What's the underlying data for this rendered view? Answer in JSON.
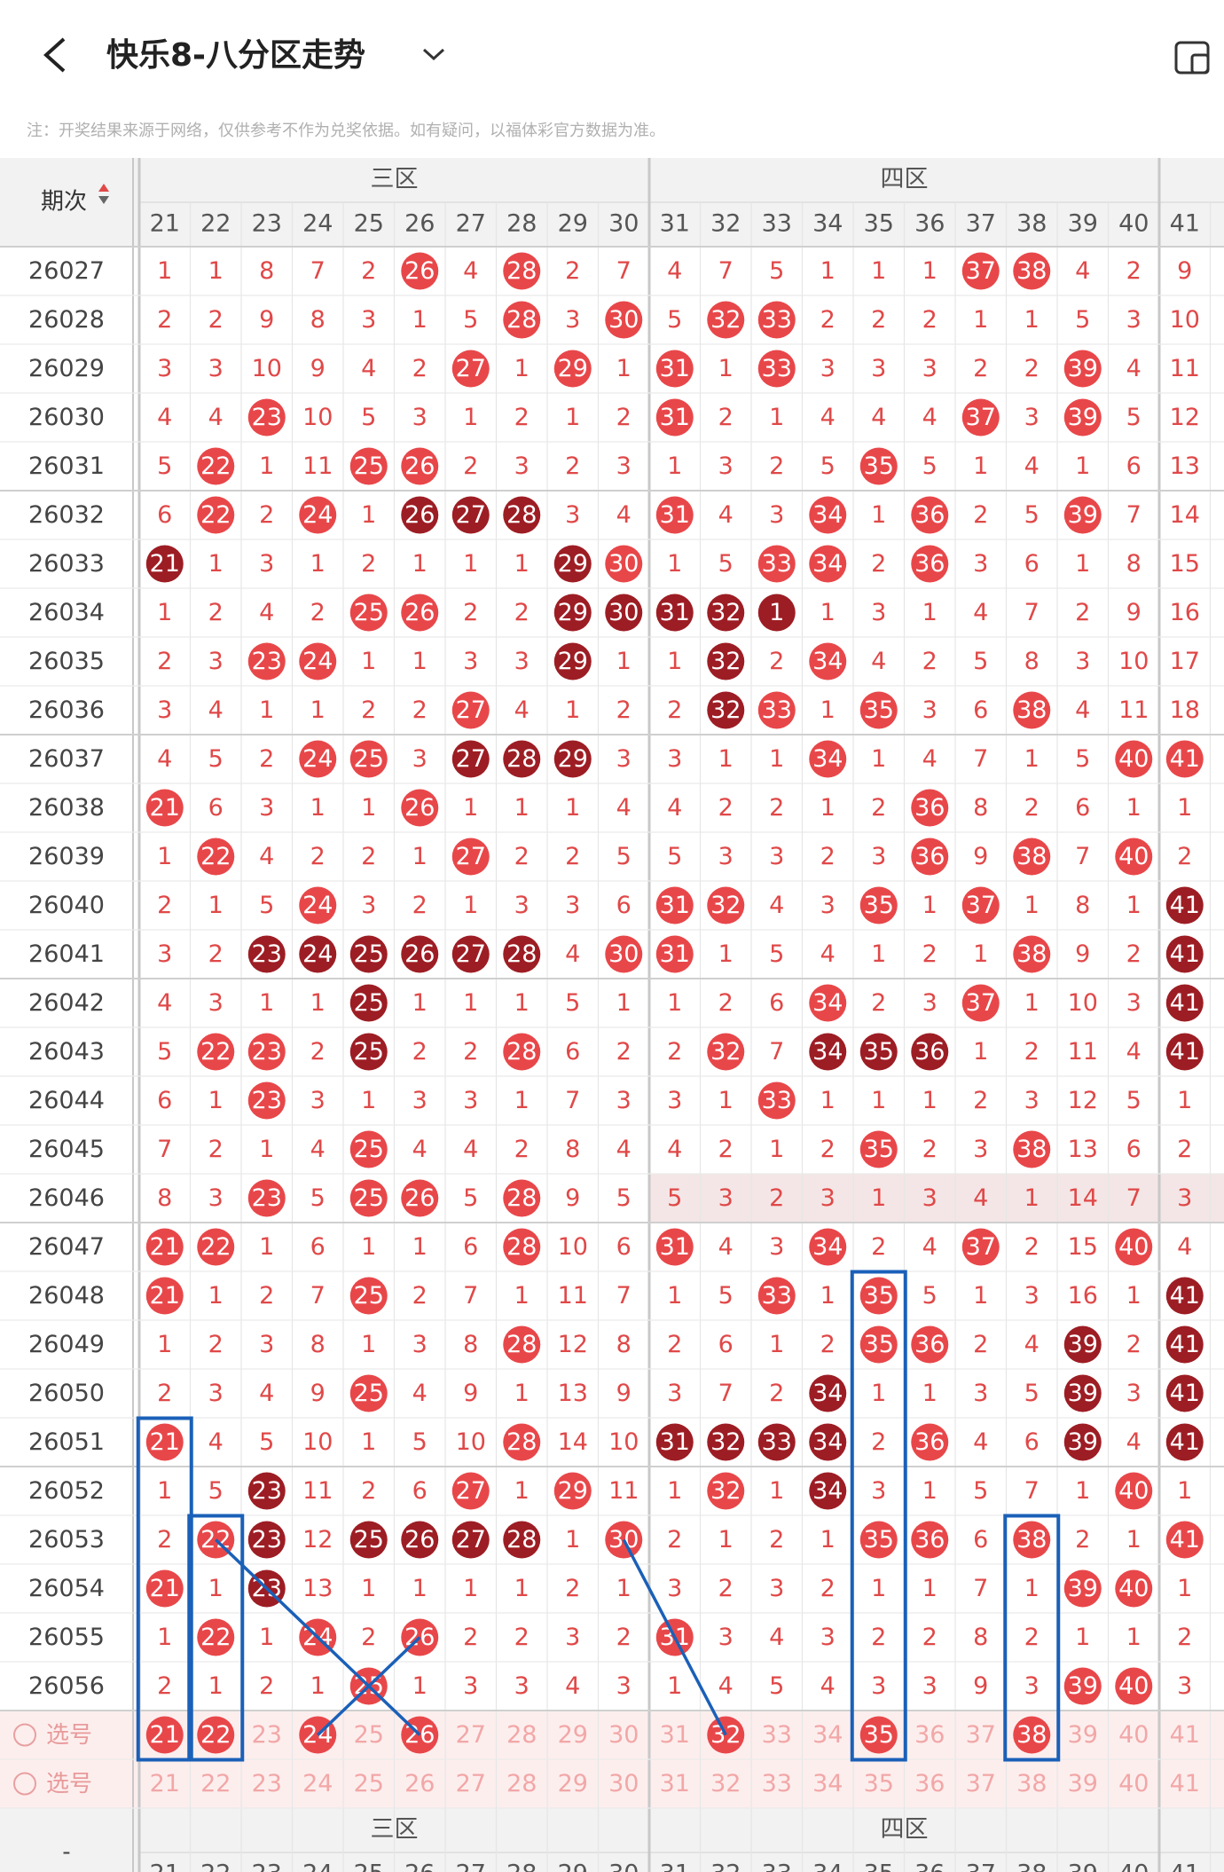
{
  "header": {
    "title": "快乐8-八分区走势",
    "notice": "注：开奖结果来源于网络，仅供参考不作为兑奖依据。如有疑问，以福体彩官方数据为准。"
  },
  "table": {
    "issue_label": "期次",
    "sections": [
      "三区",
      "四区"
    ],
    "columns": [
      "21",
      "22",
      "23",
      "24",
      "25",
      "26",
      "27",
      "28",
      "29",
      "30",
      "31",
      "32",
      "33",
      "34",
      "35",
      "36",
      "37",
      "38",
      "39",
      "40",
      "41"
    ],
    "rows": [
      {
        "issue": "26027",
        "cells": [
          1,
          1,
          8,
          7,
          2,
          26,
          4,
          28,
          2,
          7,
          4,
          7,
          5,
          1,
          1,
          1,
          37,
          38,
          4,
          2,
          9
        ],
        "style": "nnnnnrnrnnnnnnnnrrnnn"
      },
      {
        "issue": "26028",
        "cells": [
          2,
          2,
          9,
          8,
          3,
          1,
          5,
          28,
          3,
          30,
          5,
          32,
          33,
          2,
          2,
          2,
          1,
          1,
          5,
          3,
          10
        ],
        "style": "nnnnnnnrnrnrrnnnnnnnn"
      },
      {
        "issue": "26029",
        "cells": [
          3,
          3,
          10,
          9,
          4,
          2,
          27,
          1,
          29,
          1,
          31,
          1,
          33,
          3,
          3,
          3,
          2,
          2,
          39,
          4,
          11
        ],
        "style": "nnnnnnrnrnrnrnnnnnrnn"
      },
      {
        "issue": "26030",
        "cells": [
          4,
          4,
          23,
          10,
          5,
          3,
          1,
          2,
          1,
          2,
          31,
          2,
          1,
          4,
          4,
          4,
          37,
          3,
          39,
          5,
          12
        ],
        "style": "nnrnnnnnnnrnnnnnrnrnn"
      },
      {
        "issue": "26031",
        "cells": [
          5,
          22,
          1,
          11,
          25,
          26,
          2,
          3,
          2,
          3,
          1,
          3,
          2,
          5,
          35,
          5,
          1,
          4,
          1,
          6,
          13
        ],
        "style": "nrnnrrnnnnnnnnrnnnnnn"
      },
      {
        "issue": "26032",
        "cells": [
          6,
          22,
          2,
          24,
          1,
          26,
          27,
          28,
          3,
          4,
          31,
          4,
          3,
          34,
          1,
          36,
          2,
          5,
          39,
          7,
          14
        ],
        "style": "nrnrndddnnrnnrnrnnrnn"
      },
      {
        "issue": "26033",
        "cells": [
          21,
          1,
          3,
          1,
          2,
          1,
          1,
          1,
          29,
          30,
          1,
          5,
          33,
          34,
          2,
          36,
          3,
          6,
          1,
          8,
          15
        ],
        "style": "dnnnnnnndrnnrrnrnnnnn"
      },
      {
        "issue": "26034",
        "cells": [
          1,
          2,
          4,
          2,
          25,
          26,
          2,
          2,
          29,
          30,
          31,
          32,
          1,
          1,
          3,
          1,
          4,
          7,
          2,
          9,
          16
        ],
        "style": "nnnnrrnndddddnnnnnnnn"
      },
      {
        "issue": "26035",
        "cells": [
          2,
          3,
          23,
          24,
          1,
          1,
          3,
          3,
          29,
          1,
          1,
          32,
          2,
          34,
          4,
          2,
          5,
          8,
          3,
          10,
          17
        ],
        "style": "nnrrnnnndnndnrnnnnnnn"
      },
      {
        "issue": "26036",
        "cells": [
          3,
          4,
          1,
          1,
          2,
          2,
          27,
          4,
          1,
          2,
          2,
          32,
          33,
          1,
          35,
          3,
          6,
          38,
          4,
          11,
          18
        ],
        "style": "nnnnnnrnnnndrnrnnrnnn"
      },
      {
        "issue": "26037",
        "cells": [
          4,
          5,
          2,
          24,
          25,
          3,
          27,
          28,
          29,
          3,
          3,
          1,
          1,
          34,
          1,
          4,
          7,
          1,
          5,
          40,
          41
        ],
        "style": "nnnrrndddnnnnrnnnnnrr"
      },
      {
        "issue": "26038",
        "cells": [
          21,
          6,
          3,
          1,
          1,
          26,
          1,
          1,
          1,
          4,
          4,
          2,
          2,
          1,
          2,
          36,
          8,
          2,
          6,
          1,
          1
        ],
        "style": "rnnnnrnnnnnnnnnrnnnnn"
      },
      {
        "issue": "26039",
        "cells": [
          1,
          22,
          4,
          2,
          2,
          1,
          27,
          2,
          2,
          5,
          5,
          3,
          3,
          2,
          3,
          36,
          9,
          38,
          7,
          40,
          2
        ],
        "style": "nrnnnnrnnnnnnnnrnrnrn"
      },
      {
        "issue": "26040",
        "cells": [
          2,
          1,
          5,
          24,
          3,
          2,
          1,
          3,
          3,
          6,
          31,
          32,
          4,
          3,
          35,
          1,
          37,
          1,
          8,
          1,
          41
        ],
        "style": "nnnrnnnnnnrrnnrnrnnnd"
      },
      {
        "issue": "26041",
        "cells": [
          3,
          2,
          23,
          24,
          25,
          26,
          27,
          28,
          4,
          30,
          31,
          1,
          5,
          4,
          1,
          2,
          1,
          38,
          9,
          2,
          41
        ],
        "style": "nnddddddnrrnnnnnnrnnd"
      },
      {
        "issue": "26042",
        "cells": [
          4,
          3,
          1,
          1,
          25,
          1,
          1,
          1,
          5,
          1,
          1,
          2,
          6,
          34,
          2,
          3,
          37,
          1,
          10,
          3,
          41
        ],
        "style": "nnnndnnnnnnnnrnnrnnnd"
      },
      {
        "issue": "26043",
        "cells": [
          5,
          22,
          23,
          2,
          25,
          2,
          2,
          28,
          6,
          2,
          2,
          32,
          7,
          34,
          35,
          36,
          1,
          2,
          11,
          4,
          41
        ],
        "style": "nrrndnnrnnnrndddnnnnd"
      },
      {
        "issue": "26044",
        "cells": [
          6,
          1,
          23,
          3,
          1,
          3,
          3,
          1,
          7,
          3,
          3,
          1,
          33,
          1,
          1,
          1,
          2,
          3,
          12,
          5,
          1
        ],
        "style": "nnrnnnnnnnnnrnnnnnnnn"
      },
      {
        "issue": "26045",
        "cells": [
          7,
          2,
          1,
          4,
          25,
          4,
          4,
          2,
          8,
          4,
          4,
          2,
          1,
          2,
          35,
          2,
          3,
          38,
          13,
          6,
          2
        ],
        "style": "nnnnrnnnnnnnnnrnnrnnn"
      },
      {
        "issue": "26046",
        "cells": [
          8,
          3,
          23,
          5,
          25,
          26,
          5,
          28,
          9,
          5,
          5,
          3,
          2,
          3,
          1,
          3,
          4,
          1,
          14,
          7,
          3
        ],
        "style": "nnrnrrnrnnnnnnnnnnnnn"
      },
      {
        "issue": "26047",
        "cells": [
          21,
          22,
          1,
          6,
          1,
          1,
          6,
          28,
          10,
          6,
          31,
          4,
          3,
          34,
          2,
          4,
          37,
          2,
          15,
          40,
          4
        ],
        "style": "rrnnnnnrnnrnnrnnrnnrn"
      },
      {
        "issue": "26048",
        "cells": [
          21,
          1,
          2,
          7,
          25,
          2,
          7,
          1,
          11,
          7,
          1,
          5,
          33,
          1,
          35,
          5,
          1,
          3,
          16,
          1,
          41
        ],
        "style": "rnnnrnnnnnnnrnrnnnnnd"
      },
      {
        "issue": "26049",
        "cells": [
          1,
          2,
          3,
          8,
          1,
          3,
          8,
          28,
          12,
          8,
          2,
          6,
          1,
          2,
          35,
          36,
          2,
          4,
          39,
          2,
          41
        ],
        "style": "nnnnnnnrnnnnnnrrnndnd"
      },
      {
        "issue": "26050",
        "cells": [
          2,
          3,
          4,
          9,
          25,
          4,
          9,
          1,
          13,
          9,
          3,
          7,
          2,
          34,
          1,
          1,
          3,
          5,
          39,
          3,
          41
        ],
        "style": "nnnnrnnnnnnnndnnnndnd"
      },
      {
        "issue": "26051",
        "cells": [
          21,
          4,
          5,
          10,
          1,
          5,
          10,
          28,
          14,
          10,
          31,
          32,
          33,
          34,
          2,
          36,
          4,
          6,
          39,
          4,
          41
        ],
        "style": "rnnnnnnrnnddddnrnndnd"
      },
      {
        "issue": "26052",
        "cells": [
          1,
          5,
          23,
          11,
          2,
          6,
          27,
          1,
          29,
          11,
          1,
          32,
          1,
          34,
          3,
          1,
          5,
          7,
          1,
          40,
          1
        ],
        "style": "nndnnnrnrnnrndnnnnnrn"
      },
      {
        "issue": "26053",
        "cells": [
          2,
          22,
          23,
          12,
          25,
          26,
          27,
          28,
          1,
          30,
          2,
          1,
          2,
          1,
          35,
          36,
          6,
          38,
          2,
          1,
          41
        ],
        "style": "nrdnddddnrnnnnrrnrnnr"
      },
      {
        "issue": "26054",
        "cells": [
          21,
          1,
          23,
          13,
          1,
          1,
          1,
          1,
          2,
          1,
          3,
          2,
          3,
          2,
          1,
          1,
          7,
          1,
          39,
          40,
          1
        ],
        "style": "rndnnnnnnnnnnnnnnnrrn"
      },
      {
        "issue": "26055",
        "cells": [
          1,
          22,
          1,
          24,
          2,
          26,
          2,
          2,
          3,
          2,
          31,
          3,
          4,
          3,
          2,
          2,
          8,
          2,
          1,
          1,
          2
        ],
        "style": "nrnrnrnnnnrnnnnnnnnnn"
      },
      {
        "issue": "26056",
        "cells": [
          2,
          1,
          2,
          1,
          25,
          1,
          3,
          3,
          4,
          3,
          1,
          4,
          5,
          4,
          3,
          3,
          9,
          3,
          39,
          40,
          3
        ],
        "style": "nnnnrnnnnnnnnnnnnnrrn"
      }
    ],
    "pick_label": "选号",
    "pick_rows": [
      {
        "style": "rrnrnrnnnnnrnnrnnrnnn"
      },
      {
        "style": "nnnnnnnnnnnnnnnnnnnnn"
      }
    ],
    "footer_issue": "-"
  }
}
